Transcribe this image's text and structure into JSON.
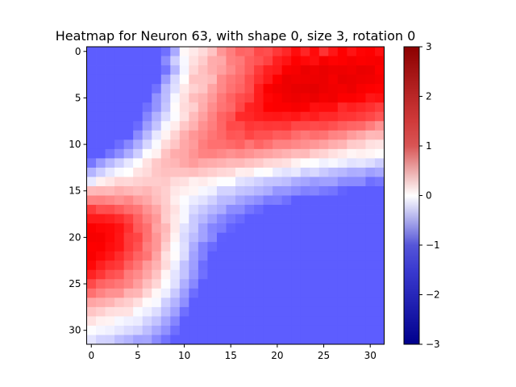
{
  "chart_data": {
    "type": "heatmap",
    "title": "Heatmap for Neuron 63, with shape 0, size 3, rotation 0",
    "xlabel": "",
    "ylabel": "",
    "rows": 32,
    "cols": 32,
    "x_ticks": [
      0,
      5,
      10,
      15,
      20,
      25,
      30
    ],
    "y_ticks": [
      0,
      5,
      10,
      15,
      20,
      25,
      30
    ],
    "colorbar": {
      "min": -3,
      "max": 3,
      "ticks": [
        -3,
        -2,
        -1,
        0,
        1,
        2,
        3
      ],
      "tick_labels": [
        "−3",
        "−2",
        "−1",
        "0",
        "1",
        "2",
        "3"
      ],
      "colormap": "seismic",
      "colors": {
        "low": "#00008c",
        "mid": "#ffffff",
        "high": "#8c0000"
      }
    },
    "grid": false,
    "values": [
      [
        -0.95,
        -0.95,
        -0.95,
        -0.95,
        -0.95,
        -0.95,
        -0.95,
        -0.95,
        -0.84,
        -0.5,
        0.04,
        0.13,
        0.22,
        0.35,
        0.62,
        0.76,
        0.91,
        0.89,
        1.07,
        1.04,
        1.17,
        1.27,
        1.43,
        1.28,
        1.44,
        1.2,
        1.37,
        1.51,
        1.39,
        1.48,
        1.51,
        1.41
      ],
      [
        -0.95,
        -0.95,
        -0.95,
        -0.95,
        -0.95,
        -0.95,
        -0.95,
        -0.95,
        -0.68,
        -0.29,
        -0.04,
        0.18,
        0.3,
        0.49,
        0.51,
        0.74,
        0.79,
        0.95,
        1.01,
        1.11,
        1.31,
        1.39,
        1.51,
        1.46,
        1.42,
        1.59,
        1.49,
        1.51,
        1.6,
        1.52,
        1.56,
        1.59
      ],
      [
        -0.95,
        -0.95,
        -0.95,
        -0.95,
        -0.95,
        -0.95,
        -0.95,
        -0.95,
        -0.82,
        -0.43,
        -0.06,
        0.24,
        0.37,
        0.48,
        0.56,
        0.69,
        0.82,
        0.96,
        1.16,
        1.31,
        1.35,
        1.55,
        1.6,
        1.74,
        1.68,
        1.75,
        1.69,
        1.7,
        1.65,
        1.75,
        1.72,
        1.52
      ],
      [
        -0.95,
        -0.95,
        -0.95,
        -0.95,
        -0.95,
        -0.95,
        -0.95,
        -0.95,
        -0.59,
        -0.23,
        0.01,
        0.35,
        0.35,
        0.4,
        0.69,
        0.8,
        0.87,
        1.05,
        1.22,
        1.35,
        1.51,
        1.71,
        1.67,
        1.69,
        1.71,
        1.73,
        1.62,
        1.77,
        1.74,
        1.69,
        1.67,
        1.6
      ],
      [
        -0.95,
        -0.95,
        -0.95,
        -0.95,
        -0.95,
        -0.95,
        -0.95,
        -0.83,
        -0.41,
        -0.18,
        0.13,
        0.27,
        0.34,
        0.54,
        0.7,
        0.83,
        0.91,
        1.04,
        1.33,
        1.55,
        1.64,
        1.7,
        1.77,
        1.78,
        1.82,
        1.72,
        1.67,
        1.63,
        1.71,
        1.57,
        1.51,
        1.49
      ],
      [
        -0.95,
        -0.95,
        -0.95,
        -0.95,
        -0.95,
        -0.95,
        -0.95,
        -0.64,
        -0.39,
        -0.05,
        0.18,
        0.39,
        0.46,
        0.6,
        0.79,
        0.92,
        1.04,
        1.11,
        1.34,
        1.47,
        1.53,
        1.66,
        1.71,
        1.65,
        1.73,
        1.62,
        1.66,
        1.52,
        1.53,
        1.48,
        1.37,
        1.4
      ],
      [
        -0.95,
        -0.95,
        -0.95,
        -0.95,
        -0.95,
        -0.95,
        -0.84,
        -0.63,
        -0.34,
        0.02,
        0.21,
        0.28,
        0.49,
        0.67,
        0.82,
        0.89,
        1.08,
        1.3,
        1.35,
        1.5,
        1.54,
        1.53,
        1.59,
        1.55,
        1.41,
        1.43,
        1.43,
        1.26,
        1.32,
        1.27,
        1.22,
        1.14
      ],
      [
        -0.95,
        -0.95,
        -0.95,
        -0.95,
        -0.95,
        -0.95,
        -0.72,
        -0.46,
        -0.21,
        -0.02,
        0.18,
        0.4,
        0.56,
        0.73,
        0.91,
        1.0,
        1.25,
        1.27,
        1.33,
        1.36,
        1.37,
        1.34,
        1.37,
        1.29,
        1.33,
        1.25,
        1.26,
        1.2,
        1.19,
        1.14,
        1.08,
        1.0
      ],
      [
        -0.95,
        -0.95,
        -0.95,
        -0.95,
        -0.95,
        -0.87,
        -0.58,
        -0.35,
        -0.04,
        0.11,
        0.33,
        0.46,
        0.65,
        0.76,
        0.9,
        1.07,
        1.06,
        1.18,
        1.15,
        1.18,
        1.17,
        1.19,
        1.08,
        1.09,
        1.06,
        1.08,
        1.03,
        0.96,
        0.91,
        0.89,
        0.77,
        0.64
      ],
      [
        -0.95,
        -0.95,
        -0.95,
        -0.95,
        -0.95,
        -0.68,
        -0.42,
        -0.14,
        0.07,
        0.26,
        0.47,
        0.62,
        0.7,
        0.81,
        0.89,
        1.0,
        0.98,
        1.1,
        1.03,
        1.03,
        0.96,
        0.97,
        0.87,
        0.8,
        0.86,
        0.83,
        0.73,
        0.7,
        0.59,
        0.52,
        0.42,
        0.43
      ],
      [
        -0.95,
        -0.95,
        -0.95,
        -0.86,
        -0.7,
        -0.48,
        -0.24,
        -0.03,
        0.21,
        0.34,
        0.51,
        0.59,
        0.76,
        0.84,
        0.84,
        0.88,
        0.93,
        0.81,
        0.91,
        0.84,
        0.74,
        0.74,
        0.7,
        0.66,
        0.61,
        0.56,
        0.48,
        0.44,
        0.31,
        0.29,
        0.18,
        0.16
      ],
      [
        -0.95,
        -0.95,
        -0.81,
        -0.67,
        -0.49,
        -0.29,
        -0.02,
        0.09,
        0.35,
        0.49,
        0.52,
        0.63,
        0.73,
        0.74,
        0.7,
        0.65,
        0.69,
        0.64,
        0.58,
        0.55,
        0.5,
        0.45,
        0.4,
        0.41,
        0.3,
        0.26,
        0.18,
        0.13,
        0.06,
        0.09,
        0.06,
        0.02
      ],
      [
        -0.8,
        -0.58,
        -0.42,
        -0.28,
        -0.14,
        -0.01,
        0.17,
        0.32,
        0.4,
        0.43,
        0.52,
        0.58,
        0.51,
        0.49,
        0.46,
        0.41,
        0.42,
        0.36,
        0.32,
        0.24,
        0.22,
        0.18,
        0.08,
        0.02,
        -0.01,
        -0.08,
        -0.04,
        -0.1,
        -0.17,
        -0.15,
        -0.2,
        -0.29
      ],
      [
        -0.44,
        -0.29,
        -0.15,
        -0.04,
        0.0,
        0.16,
        0.22,
        0.33,
        0.37,
        0.36,
        0.36,
        0.38,
        0.33,
        0.29,
        0.24,
        0.22,
        0.1,
        0.11,
        -0.02,
        0.02,
        -0.12,
        -0.17,
        -0.13,
        -0.27,
        -0.23,
        -0.31,
        -0.38,
        -0.42,
        -0.48,
        -0.47,
        -0.56,
        -0.51
      ],
      [
        -0.13,
        0.09,
        0.15,
        0.24,
        0.23,
        0.27,
        0.3,
        0.3,
        0.32,
        0.21,
        0.18,
        0.09,
        0.12,
        0.06,
        -0.01,
        -0.01,
        -0.17,
        -0.21,
        -0.27,
        -0.34,
        -0.35,
        -0.39,
        -0.49,
        -0.53,
        -0.59,
        -0.56,
        -0.56,
        -0.67,
        -0.68,
        -0.68,
        -0.84,
        -0.8
      ],
      [
        0.41,
        0.43,
        0.41,
        0.47,
        0.43,
        0.39,
        0.43,
        0.35,
        0.28,
        0.14,
        0.09,
        0.06,
        -0.05,
        -0.09,
        -0.26,
        -0.26,
        -0.34,
        -0.37,
        -0.43,
        -0.48,
        -0.62,
        -0.61,
        -0.67,
        -0.74,
        -0.72,
        -0.79,
        -0.82,
        -0.92,
        -0.95,
        -0.95,
        -0.95,
        -0.95
      ],
      [
        0.73,
        0.74,
        0.7,
        0.64,
        0.7,
        0.58,
        0.51,
        0.39,
        0.29,
        0.1,
        -0.02,
        -0.11,
        -0.17,
        -0.27,
        -0.4,
        -0.42,
        -0.53,
        -0.6,
        -0.66,
        -0.77,
        -0.76,
        -0.84,
        -0.95,
        -0.95,
        -0.95,
        -0.95,
        -0.95,
        -0.95,
        -0.95,
        -0.95,
        -0.95,
        -0.95
      ],
      [
        1.15,
        1.03,
        1.04,
        0.96,
        0.86,
        0.8,
        0.64,
        0.52,
        0.31,
        0.17,
        -0.05,
        -0.22,
        -0.32,
        -0.42,
        -0.49,
        -0.67,
        -0.68,
        -0.81,
        -0.88,
        -0.95,
        -0.95,
        -0.95,
        -0.95,
        -0.95,
        -0.95,
        -0.95,
        -0.95,
        -0.95,
        -0.95,
        -0.95,
        -0.95,
        -0.95
      ],
      [
        1.35,
        1.35,
        1.31,
        1.24,
        1.12,
        0.92,
        0.74,
        0.6,
        0.3,
        0.13,
        -0.05,
        -0.31,
        -0.42,
        -0.56,
        -0.7,
        -0.8,
        -0.87,
        -0.95,
        -0.95,
        -0.95,
        -0.95,
        -0.95,
        -0.95,
        -0.95,
        -0.95,
        -0.95,
        -0.95,
        -0.95,
        -0.95,
        -0.95,
        -0.95,
        -0.95
      ],
      [
        1.53,
        1.47,
        1.45,
        1.39,
        1.22,
        0.96,
        0.84,
        0.55,
        0.42,
        0.13,
        -0.17,
        -0.31,
        -0.54,
        -0.72,
        -0.77,
        -0.91,
        -0.95,
        -0.95,
        -0.95,
        -0.95,
        -0.95,
        -0.95,
        -0.95,
        -0.95,
        -0.95,
        -0.95,
        -0.95,
        -0.95,
        -0.95,
        -0.95,
        -0.95,
        -0.95
      ],
      [
        1.59,
        1.58,
        1.46,
        1.37,
        1.15,
        1.09,
        0.83,
        0.62,
        0.37,
        0.07,
        -0.22,
        -0.39,
        -0.55,
        -0.7,
        -0.94,
        -0.95,
        -0.95,
        -0.95,
        -0.95,
        -0.95,
        -0.95,
        -0.95,
        -0.95,
        -0.95,
        -0.95,
        -0.95,
        -0.95,
        -0.95,
        -0.95,
        -0.95,
        -0.95,
        -0.95
      ],
      [
        1.51,
        1.53,
        1.43,
        1.37,
        1.16,
        1.03,
        0.76,
        0.62,
        0.29,
        -0.02,
        -0.19,
        -0.49,
        -0.74,
        -0.87,
        -0.95,
        -0.95,
        -0.95,
        -0.95,
        -0.95,
        -0.95,
        -0.95,
        -0.95,
        -0.95,
        -0.95,
        -0.95,
        -0.95,
        -0.95,
        -0.95,
        -0.95,
        -0.95,
        -0.95,
        -0.95
      ],
      [
        1.56,
        1.45,
        1.37,
        1.24,
        1.08,
        0.92,
        0.81,
        0.54,
        0.18,
        0.02,
        -0.21,
        -0.55,
        -0.74,
        -0.95,
        -0.95,
        -0.95,
        -0.95,
        -0.95,
        -0.95,
        -0.95,
        -0.95,
        -0.95,
        -0.95,
        -0.95,
        -0.95,
        -0.95,
        -0.95,
        -0.95,
        -0.95,
        -0.95,
        -0.95,
        -0.95
      ],
      [
        1.46,
        1.32,
        1.21,
        1.16,
        0.95,
        0.81,
        0.6,
        0.45,
        0.21,
        -0.09,
        -0.36,
        -0.57,
        -0.86,
        -0.95,
        -0.95,
        -0.95,
        -0.95,
        -0.95,
        -0.95,
        -0.95,
        -0.95,
        -0.95,
        -0.95,
        -0.95,
        -0.95,
        -0.95,
        -0.95,
        -0.95,
        -0.95,
        -0.95,
        -0.95,
        -0.95
      ],
      [
        1.3,
        1.18,
        1.04,
        0.99,
        0.77,
        0.68,
        0.53,
        0.35,
        0.06,
        -0.16,
        -0.35,
        -0.61,
        -0.84,
        -0.95,
        -0.95,
        -0.95,
        -0.95,
        -0.95,
        -0.95,
        -0.95,
        -0.95,
        -0.95,
        -0.95,
        -0.95,
        -0.95,
        -0.95,
        -0.95,
        -0.95,
        -0.95,
        -0.95,
        -0.95,
        -0.95
      ],
      [
        1.07,
        0.92,
        0.86,
        0.8,
        0.72,
        0.57,
        0.39,
        0.24,
        -0.01,
        -0.18,
        -0.47,
        -0.7,
        -0.95,
        -0.95,
        -0.95,
        -0.95,
        -0.95,
        -0.95,
        -0.95,
        -0.95,
        -0.95,
        -0.95,
        -0.95,
        -0.95,
        -0.95,
        -0.95,
        -0.95,
        -0.95,
        -0.95,
        -0.95,
        -0.95,
        -0.95
      ],
      [
        0.84,
        0.73,
        0.65,
        0.64,
        0.46,
        0.43,
        0.25,
        0.05,
        -0.1,
        -0.32,
        -0.57,
        -0.86,
        -0.95,
        -0.95,
        -0.95,
        -0.95,
        -0.95,
        -0.95,
        -0.95,
        -0.95,
        -0.95,
        -0.95,
        -0.95,
        -0.95,
        -0.95,
        -0.95,
        -0.95,
        -0.95,
        -0.95,
        -0.95,
        -0.95,
        -0.95
      ],
      [
        0.53,
        0.49,
        0.44,
        0.34,
        0.29,
        0.19,
        0.03,
        -0.04,
        -0.28,
        -0.45,
        -0.66,
        -0.95,
        -0.95,
        -0.95,
        -0.95,
        -0.95,
        -0.95,
        -0.95,
        -0.95,
        -0.95,
        -0.95,
        -0.95,
        -0.95,
        -0.95,
        -0.95,
        -0.95,
        -0.95,
        -0.95,
        -0.95,
        -0.95,
        -0.95,
        -0.95
      ],
      [
        0.34,
        0.28,
        0.2,
        0.18,
        0.17,
        -0.03,
        -0.1,
        -0.2,
        -0.38,
        -0.56,
        -0.85,
        -0.95,
        -0.95,
        -0.95,
        -0.95,
        -0.95,
        -0.95,
        -0.95,
        -0.95,
        -0.95,
        -0.95,
        -0.95,
        -0.95,
        -0.95,
        -0.95,
        -0.95,
        -0.95,
        -0.95,
        -0.95,
        -0.95,
        -0.95,
        -0.95
      ],
      [
        0.17,
        0.09,
        0.07,
        -0.05,
        -0.09,
        -0.12,
        -0.25,
        -0.35,
        -0.53,
        -0.72,
        -0.95,
        -0.95,
        -0.95,
        -0.95,
        -0.95,
        -0.95,
        -0.95,
        -0.95,
        -0.95,
        -0.95,
        -0.95,
        -0.95,
        -0.95,
        -0.95,
        -0.95,
        -0.95,
        -0.95,
        -0.95,
        -0.95,
        -0.95,
        -0.95,
        -0.95
      ],
      [
        -0.02,
        -0.06,
        -0.09,
        -0.15,
        -0.21,
        -0.26,
        -0.38,
        -0.51,
        -0.65,
        -0.85,
        -0.95,
        -0.95,
        -0.95,
        -0.95,
        -0.95,
        -0.95,
        -0.95,
        -0.95,
        -0.95,
        -0.95,
        -0.95,
        -0.95,
        -0.95,
        -0.95,
        -0.95,
        -0.95,
        -0.95,
        -0.95,
        -0.95,
        -0.95,
        -0.95,
        -0.95
      ],
      [
        -0.16,
        -0.26,
        -0.27,
        -0.38,
        -0.44,
        -0.54,
        -0.53,
        -0.69,
        -0.83,
        -0.95,
        -0.95,
        -0.95,
        -0.95,
        -0.95,
        -0.95,
        -0.95,
        -0.95,
        -0.95,
        -0.95,
        -0.95,
        -0.95,
        -0.95,
        -0.95,
        -0.95,
        -0.95,
        -0.95,
        -0.95,
        -0.95,
        -0.95,
        -0.95,
        -0.95,
        -0.95
      ]
    ]
  }
}
